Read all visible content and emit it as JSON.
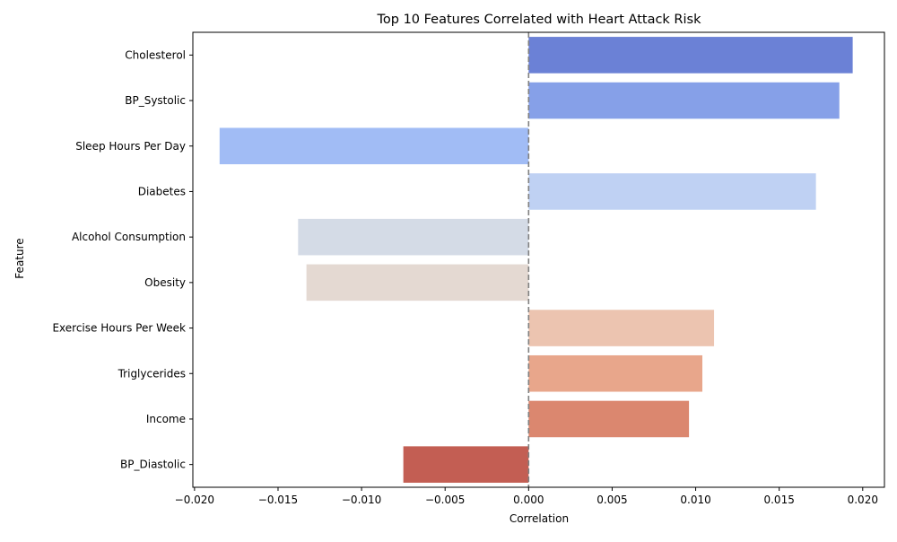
{
  "chart_data": {
    "type": "bar",
    "orientation": "horizontal",
    "title": "Top 10 Features Correlated with Heart Attack Risk",
    "xlabel": "Correlation",
    "ylabel": "Feature",
    "xlim": [
      -0.0201,
      0.0213
    ],
    "xticks": [
      -0.02,
      -0.015,
      -0.01,
      -0.005,
      0.0,
      0.005,
      0.01,
      0.015,
      0.02
    ],
    "xtick_labels": [
      "−0.020",
      "−0.015",
      "−0.010",
      "−0.005",
      "0.000",
      "0.005",
      "0.010",
      "0.015",
      "0.020"
    ],
    "reference_line": {
      "x": 0.0,
      "style": "dashed",
      "color": "#808080"
    },
    "grid": false,
    "legend": "none",
    "categories": [
      "Cholesterol",
      "BP_Systolic",
      "Sleep Hours Per Day",
      "Diabetes",
      "Alcohol Consumption",
      "Obesity",
      "Exercise Hours Per Week",
      "Triglycerides",
      "Income",
      "BP_Diastolic"
    ],
    "values": [
      0.0194,
      0.0186,
      -0.0185,
      0.0172,
      -0.0138,
      -0.0133,
      0.0111,
      0.0104,
      0.0096,
      -0.0075
    ],
    "colors": [
      "#6b81d6",
      "#86a0e8",
      "#a1bcf5",
      "#bfd1f3",
      "#d4dbe6",
      "#e4d9d2",
      "#ecc4b0",
      "#e8a68b",
      "#db876f",
      "#c35e53"
    ]
  }
}
